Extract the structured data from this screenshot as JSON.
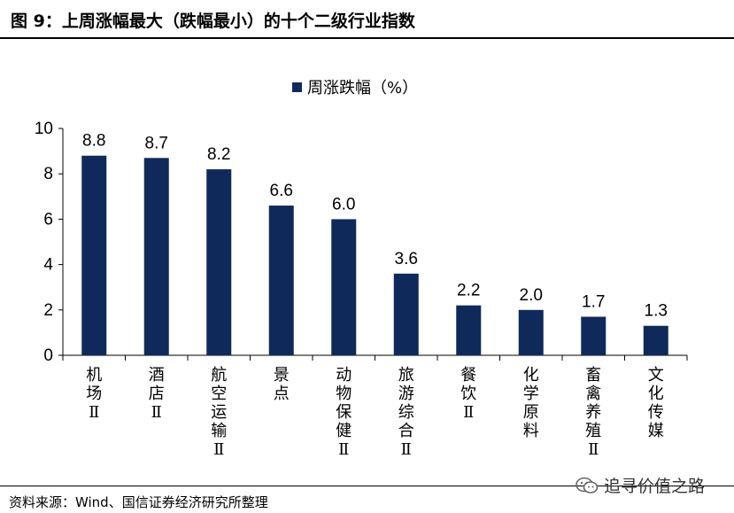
{
  "header": {
    "title": "图 9：上周涨幅最大（跌幅最小）的十个二级行业指数"
  },
  "legend": {
    "label": "周涨跌幅（%）"
  },
  "source": "资料来源：Wind、国信证券经济研究所整理",
  "watermark": {
    "text": "追寻价值之路",
    "icon": "wechat-icon"
  },
  "chart_data": {
    "type": "bar",
    "title": "",
    "xlabel": "",
    "ylabel": "",
    "categories": [
      "机场Ⅱ",
      "酒店Ⅱ",
      "航空运输Ⅱ",
      "景点",
      "动物保健Ⅱ",
      "旅游综合Ⅱ",
      "餐饮Ⅱ",
      "化学原料",
      "畜禽养殖Ⅱ",
      "文化传媒"
    ],
    "series": [
      {
        "name": "周涨跌幅（%）",
        "values": [
          8.8,
          8.7,
          8.2,
          6.6,
          6.0,
          3.6,
          2.2,
          2.0,
          1.7,
          1.3
        ]
      }
    ],
    "data_labels": [
      "8.8",
      "8.7",
      "8.2",
      "6.6",
      "6.0",
      "3.6",
      "2.2",
      "2.0",
      "1.7",
      "1.3"
    ],
    "ylim": [
      0,
      10
    ],
    "yticks": [
      "0",
      "2",
      "4",
      "6",
      "8",
      "10"
    ],
    "grid": false,
    "legend_position": "top",
    "colors": {
      "bar": "#0f2a5a"
    }
  }
}
